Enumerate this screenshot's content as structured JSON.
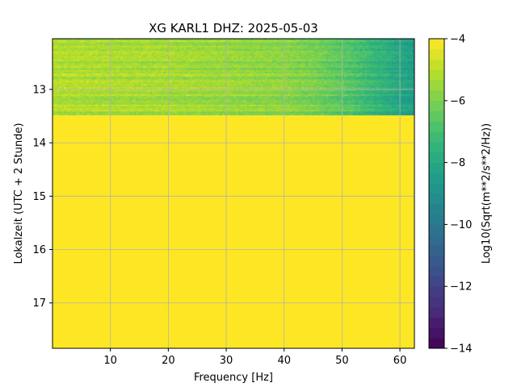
{
  "chart_data": {
    "type": "heatmap",
    "title": "XG KARL1  DHZ: 2025-05-03",
    "xlabel": "Frequency [Hz]",
    "ylabel": "Lokalzeit (UTC + 2 Stunde)",
    "xlim": [
      0,
      62.5
    ],
    "ylim": [
      17.85,
      12.05
    ],
    "y_inverted": true,
    "xticks": [
      10,
      20,
      30,
      40,
      50,
      60
    ],
    "yticks": [
      13,
      14,
      15,
      16,
      17
    ],
    "grid": true,
    "colormap": "viridis",
    "data_region": {
      "time_start": 12.05,
      "time_end": 13.48,
      "fill_value_after_data": -4,
      "value_profile_freq_hz": [
        0,
        10,
        20,
        30,
        40,
        45,
        50,
        55,
        60,
        62.5
      ],
      "value_profile_log10": [
        -5.2,
        -5.3,
        -5.4,
        -5.6,
        -5.8,
        -6.1,
        -6.6,
        -7.3,
        -8.1,
        -8.5
      ]
    },
    "colorbar": {
      "label": "Log10(Sqrt(m**2/s**2/Hz))",
      "range": [
        -14,
        -4
      ],
      "ticks": [
        "−4",
        "−6",
        "−8",
        "−10",
        "−12",
        "−14"
      ],
      "tick_values": [
        -4,
        -6,
        -8,
        -10,
        -12,
        -14
      ],
      "levels": 30
    }
  }
}
